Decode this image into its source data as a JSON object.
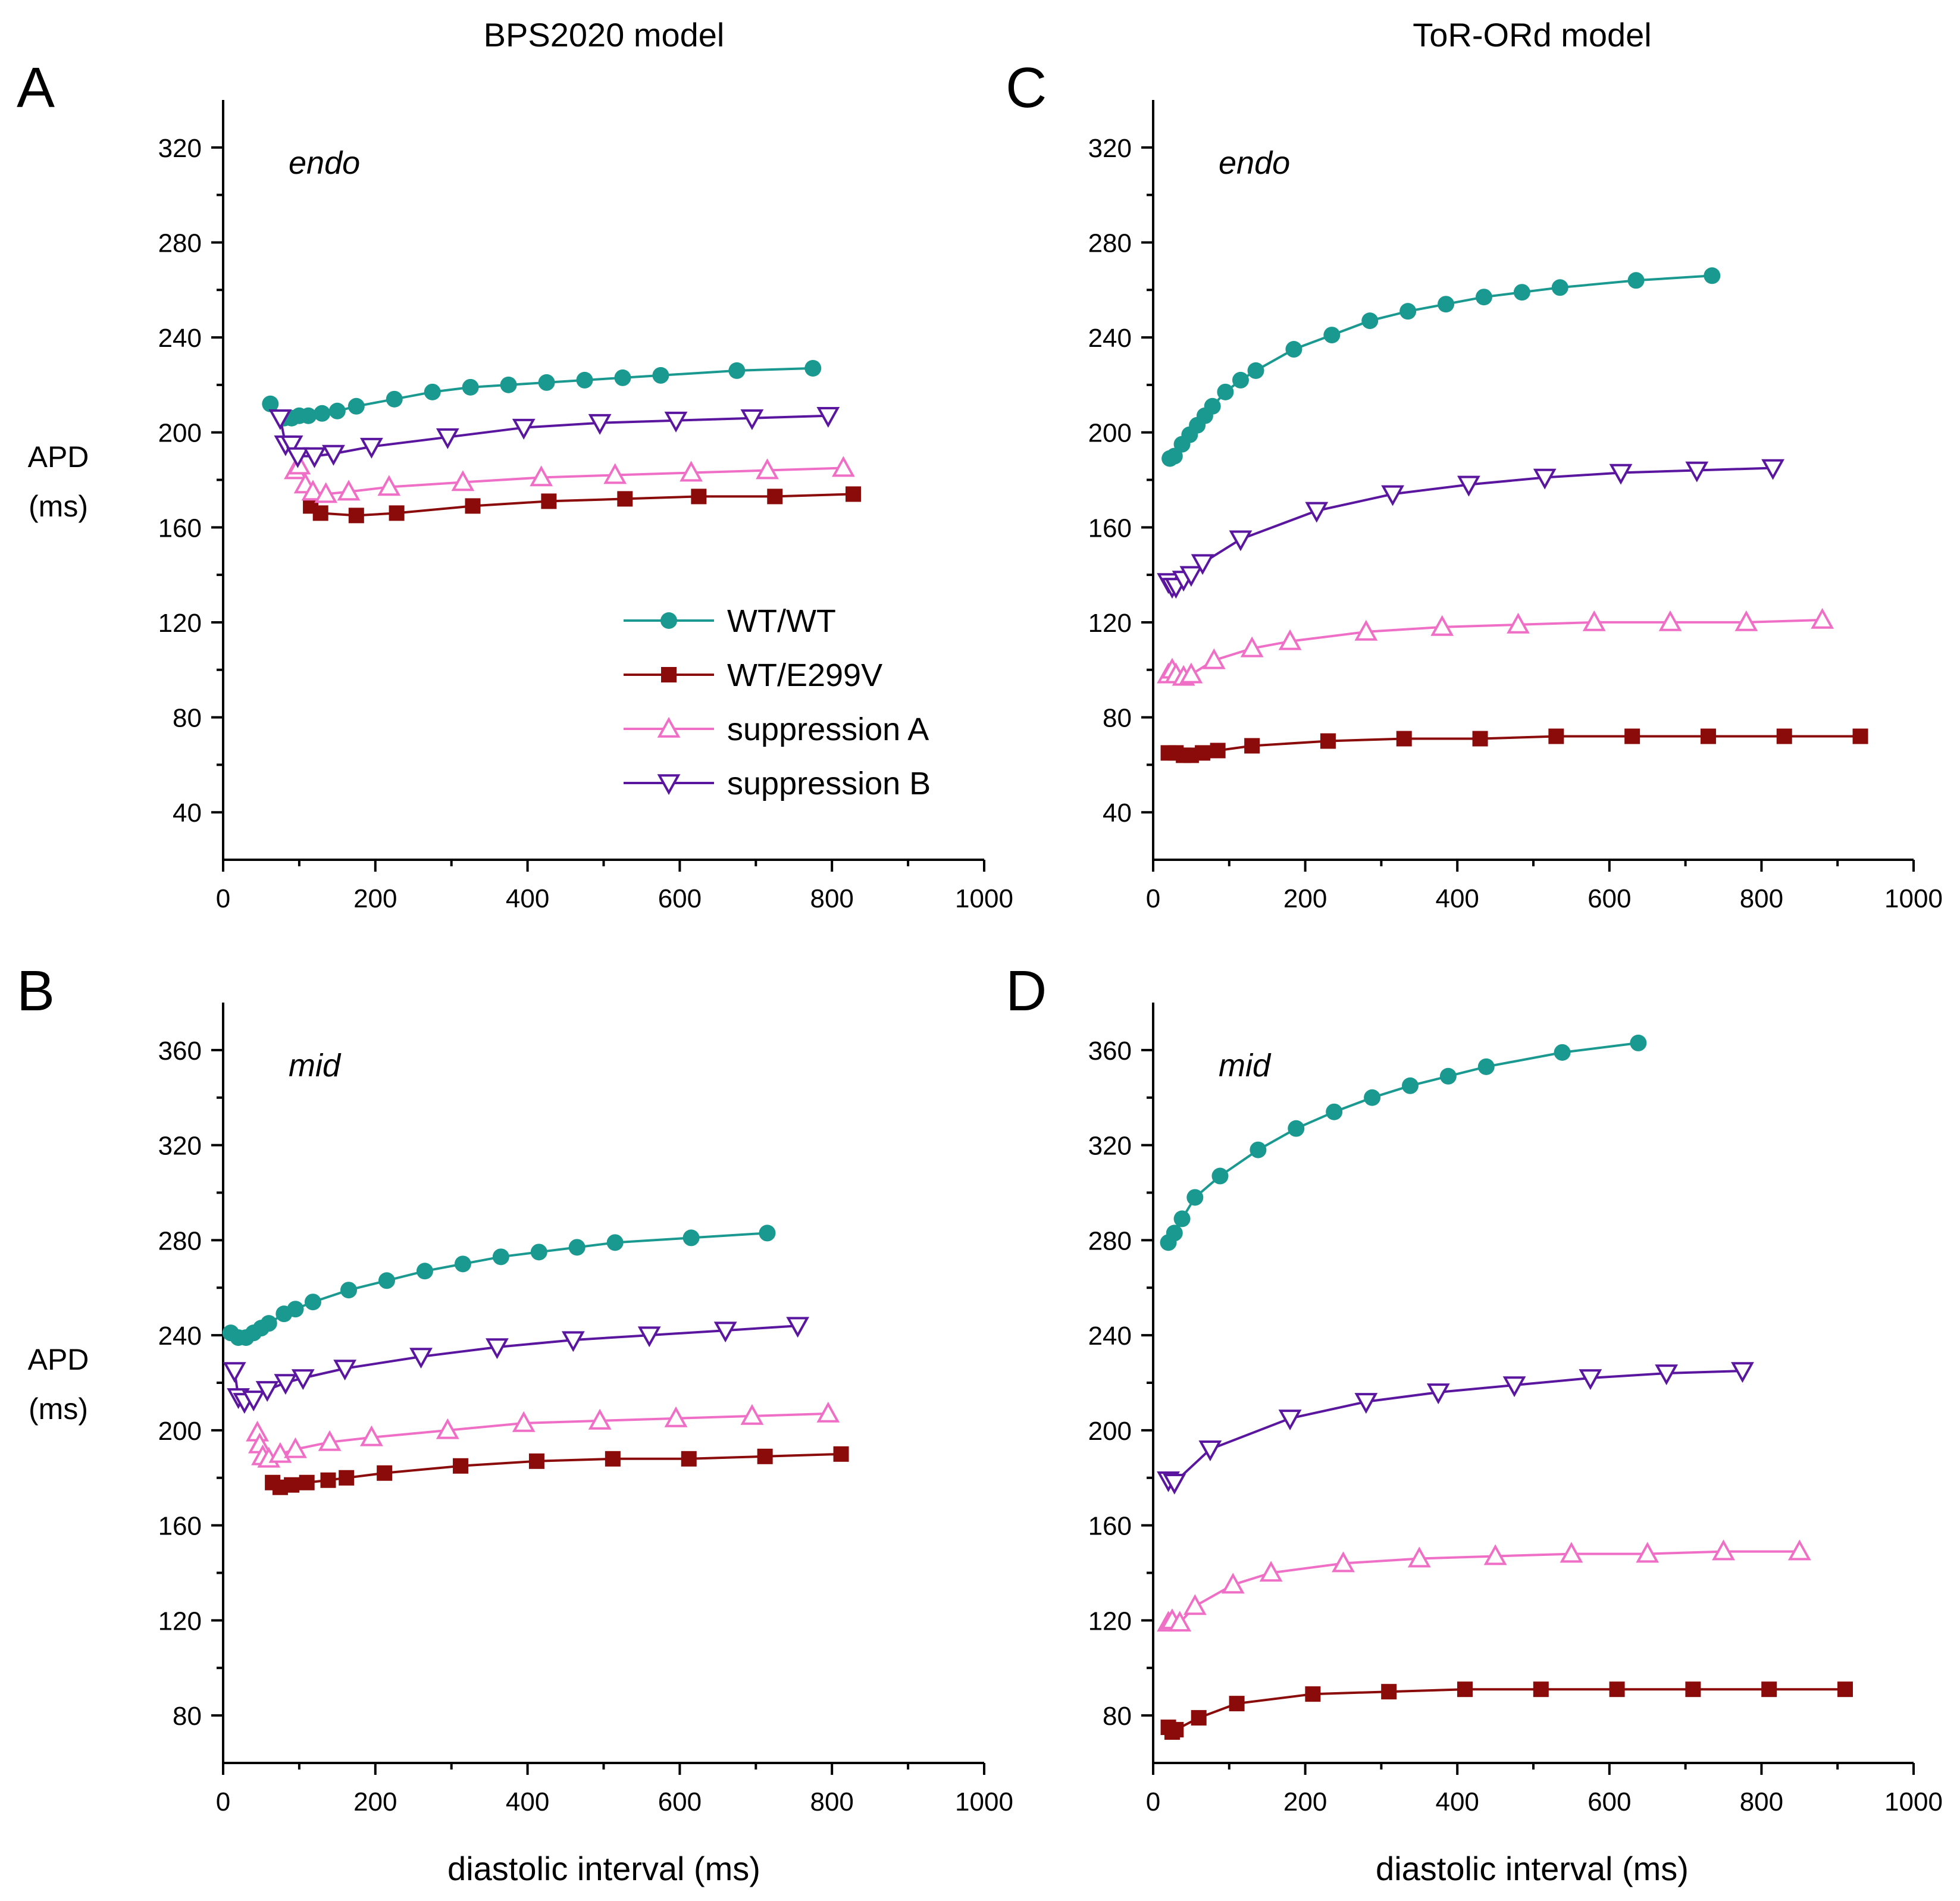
{
  "column_titles": [
    "BPS2020 model",
    "ToR-ORd model"
  ],
  "x_axis_label": "diastolic interval (ms)",
  "y_axis_label": [
    "APD",
    "(ms)"
  ],
  "legend": [
    {
      "label": "WT/WT",
      "marker": "circle",
      "color": "#1a9990"
    },
    {
      "label": "WT/E299V",
      "marker": "square",
      "color": "#8b0a0a"
    },
    {
      "label": "suppression A",
      "marker": "triangle-up-open",
      "color": "#f06fc6"
    },
    {
      "label": "suppression B",
      "marker": "triangle-down-open",
      "color": "#5a169e"
    }
  ],
  "chart_data": [
    {
      "panel": "A",
      "type": "line",
      "model": "BPS2020 model",
      "condition": "endo",
      "xlim": [
        0,
        1000
      ],
      "ylim": [
        20,
        340
      ],
      "xticks": [
        0,
        200,
        400,
        600,
        800,
        1000
      ],
      "yticks": [
        40,
        80,
        120,
        160,
        200,
        240,
        280,
        320
      ],
      "series": [
        {
          "name": "WT/WT",
          "x": [
            62,
            80,
            90,
            100,
            112,
            130,
            150,
            175,
            225,
            275,
            325,
            375,
            425,
            475,
            525,
            575,
            675,
            775
          ],
          "y": [
            212,
            206,
            206,
            207,
            207,
            208,
            209,
            211,
            214,
            217,
            219,
            220,
            221,
            222,
            223,
            224,
            226,
            227
          ]
        },
        {
          "name": "WT/E299V",
          "x": [
            115,
            128,
            175,
            228,
            328,
            428,
            528,
            625,
            725,
            828
          ],
          "y": [
            169,
            166,
            165,
            166,
            169,
            171,
            172,
            173,
            173,
            174
          ]
        },
        {
          "name": "suppression A",
          "x": [
            95,
            100,
            108,
            118,
            135,
            165,
            218,
            315,
            418,
            515,
            615,
            715,
            815
          ],
          "y": [
            184,
            186,
            178,
            175,
            174,
            175,
            177,
            179,
            181,
            182,
            183,
            184,
            185
          ]
        },
        {
          "name": "suppression B",
          "x": [
            75,
            82,
            90,
            98,
            120,
            145,
            195,
            295,
            395,
            495,
            595,
            695,
            795
          ],
          "y": [
            206,
            195,
            195,
            190,
            190,
            191,
            194,
            198,
            202,
            204,
            205,
            206,
            207
          ]
        }
      ]
    },
    {
      "panel": "B",
      "type": "line",
      "model": "BPS2020 model",
      "condition": "mid",
      "xlim": [
        0,
        1000
      ],
      "ylim": [
        60,
        380
      ],
      "xticks": [
        0,
        200,
        400,
        600,
        800,
        1000
      ],
      "yticks": [
        80,
        120,
        160,
        200,
        240,
        280,
        320,
        360
      ],
      "series": [
        {
          "name": "WT/WT",
          "x": [
            10,
            20,
            30,
            40,
            50,
            60,
            80,
            95,
            118,
            165,
            215,
            265,
            315,
            365,
            415,
            465,
            515,
            615,
            715
          ],
          "y": [
            241,
            239,
            239,
            241,
            243,
            245,
            249,
            251,
            254,
            259,
            263,
            267,
            270,
            273,
            275,
            277,
            279,
            281,
            283
          ]
        },
        {
          "name": "WT/E299V",
          "x": [
            65,
            75,
            90,
            110,
            138,
            162,
            212,
            312,
            412,
            512,
            612,
            712,
            812
          ],
          "y": [
            178,
            176,
            177,
            178,
            179,
            180,
            182,
            185,
            187,
            188,
            188,
            189,
            190
          ]
        },
        {
          "name": "suppression A",
          "x": [
            45,
            48,
            52,
            60,
            75,
            95,
            140,
            195,
            295,
            395,
            495,
            595,
            695,
            795
          ],
          "y": [
            199,
            194,
            189,
            188,
            190,
            192,
            195,
            197,
            200,
            203,
            204,
            205,
            206,
            207
          ]
        },
        {
          "name": "suppression B",
          "x": [
            15,
            20,
            28,
            40,
            58,
            82,
            105,
            160,
            260,
            360,
            460,
            560,
            660,
            755
          ],
          "y": [
            225,
            214,
            212,
            213,
            217,
            220,
            222,
            226,
            231,
            235,
            238,
            240,
            242,
            244
          ]
        }
      ]
    },
    {
      "panel": "C",
      "type": "line",
      "model": "ToR-ORd model",
      "condition": "endo",
      "xlim": [
        0,
        1000
      ],
      "ylim": [
        20,
        340
      ],
      "xticks": [
        0,
        200,
        400,
        600,
        800,
        1000
      ],
      "yticks": [
        40,
        80,
        120,
        160,
        200,
        240,
        280,
        320
      ],
      "series": [
        {
          "name": "WT/WT",
          "x": [
            22,
            28,
            38,
            48,
            58,
            68,
            78,
            95,
            115,
            135,
            185,
            235,
            285,
            335,
            385,
            435,
            485,
            535,
            635,
            735
          ],
          "y": [
            189,
            190,
            195,
            199,
            203,
            207,
            211,
            217,
            222,
            226,
            235,
            241,
            247,
            251,
            254,
            257,
            259,
            261,
            264,
            266
          ]
        },
        {
          "name": "WT/E299V",
          "x": [
            20,
            30,
            40,
            50,
            65,
            85,
            130,
            230,
            330,
            430,
            530,
            630,
            730,
            830,
            930
          ],
          "y": [
            65,
            65,
            64,
            64,
            65,
            66,
            68,
            70,
            71,
            71,
            72,
            72,
            72,
            72,
            72
          ]
        },
        {
          "name": "suppression A",
          "x": [
            20,
            25,
            30,
            40,
            50,
            80,
            130,
            180,
            280,
            380,
            480,
            580,
            680,
            780,
            880
          ],
          "y": [
            98,
            100,
            98,
            97,
            98,
            104,
            109,
            112,
            116,
            118,
            119,
            120,
            120,
            120,
            121
          ]
        },
        {
          "name": "suppression B",
          "x": [
            20,
            25,
            30,
            40,
            50,
            65,
            115,
            215,
            315,
            415,
            515,
            615,
            715,
            815
          ],
          "y": [
            137,
            135,
            135,
            138,
            140,
            145,
            155,
            167,
            174,
            178,
            181,
            183,
            184,
            185
          ]
        }
      ]
    },
    {
      "panel": "D",
      "type": "line",
      "model": "ToR-ORd model",
      "condition": "mid",
      "xlim": [
        0,
        1000
      ],
      "ylim": [
        60,
        380
      ],
      "xticks": [
        0,
        200,
        400,
        600,
        800,
        1000
      ],
      "yticks": [
        80,
        120,
        160,
        200,
        240,
        280,
        320,
        360
      ],
      "series": [
        {
          "name": "WT/WT",
          "x": [
            20,
            28,
            38,
            55,
            88,
            138,
            188,
            238,
            288,
            338,
            388,
            438,
            538,
            638
          ],
          "y": [
            279,
            283,
            289,
            298,
            307,
            318,
            327,
            334,
            340,
            345,
            349,
            353,
            359,
            363
          ]
        },
        {
          "name": "WT/E299V",
          "x": [
            20,
            25,
            30,
            60,
            110,
            210,
            310,
            410,
            510,
            610,
            710,
            810,
            910
          ],
          "y": [
            75,
            73,
            74,
            79,
            85,
            89,
            90,
            91,
            91,
            91,
            91,
            91,
            91
          ]
        },
        {
          "name": "suppression A",
          "x": [
            20,
            25,
            35,
            55,
            105,
            155,
            250,
            350,
            450,
            550,
            650,
            750,
            850
          ],
          "y": [
            119,
            120,
            119,
            126,
            135,
            140,
            144,
            146,
            147,
            148,
            148,
            149,
            149
          ]
        },
        {
          "name": "suppression B",
          "x": [
            20,
            28,
            75,
            180,
            280,
            375,
            475,
            575,
            675,
            775
          ],
          "y": [
            179,
            178,
            192,
            205,
            212,
            216,
            219,
            222,
            224,
            225
          ]
        }
      ]
    }
  ]
}
